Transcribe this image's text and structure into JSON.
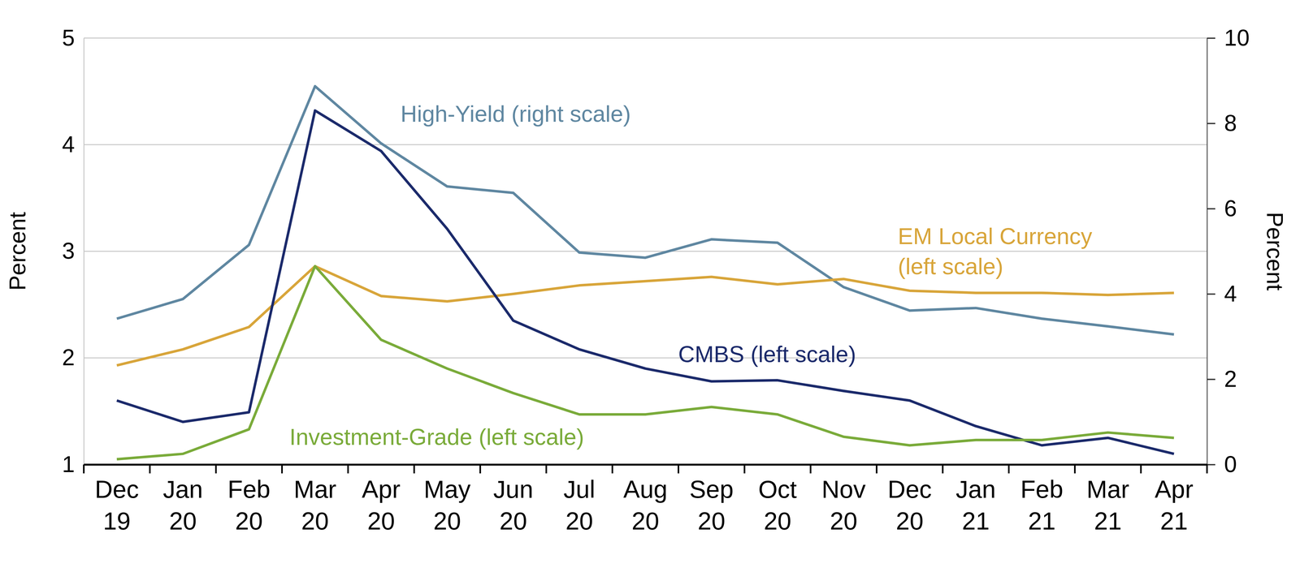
{
  "chart_data": {
    "type": "line",
    "categories": [
      "Dec 19",
      "Jan 20",
      "Feb 20",
      "Mar 20",
      "Apr 20",
      "May 20",
      "Jun 20",
      "Jul 20",
      "Aug 20",
      "Sep 20",
      "Oct 20",
      "Nov 20",
      "Dec 20",
      "Jan 21",
      "Feb 21",
      "Mar 21",
      "Apr 21"
    ],
    "y_label": "Percent",
    "y2_label": "Percent",
    "ylim": [
      1,
      5
    ],
    "yticks": [
      1,
      2,
      3,
      4,
      5
    ],
    "y2lim": [
      0,
      10
    ],
    "y2ticks": [
      0,
      2,
      4,
      6,
      8,
      10
    ],
    "grid": true,
    "series": [
      {
        "name": "High-Yield (right scale)",
        "color": "#5f87a1",
        "axis": "y2",
        "values": [
          3.42,
          3.88,
          5.15,
          8.87,
          7.53,
          6.52,
          6.37,
          4.97,
          4.85,
          5.28,
          5.2,
          4.16,
          3.61,
          3.67,
          3.42,
          3.24,
          3.05
        ]
      },
      {
        "name": "EM Local Currency (left scale)",
        "color": "#d8a53a",
        "axis": "y",
        "values": [
          1.93,
          2.08,
          2.29,
          2.86,
          2.58,
          2.53,
          2.6,
          2.68,
          2.72,
          2.76,
          2.69,
          2.74,
          2.63,
          2.61,
          2.61,
          2.59,
          2.61
        ]
      },
      {
        "name": "CMBS (left scale)",
        "color": "#1b2a6b",
        "axis": "y",
        "values": [
          1.6,
          1.4,
          1.49,
          4.32,
          3.94,
          3.21,
          2.35,
          2.08,
          1.9,
          1.78,
          1.79,
          1.69,
          1.6,
          1.36,
          1.18,
          1.25,
          1.1
        ]
      },
      {
        "name": "Investment-Grade (left scale)",
        "color": "#7aab3a",
        "axis": "y",
        "values": [
          1.05,
          1.1,
          1.33,
          2.86,
          2.17,
          1.9,
          1.67,
          1.47,
          1.47,
          1.54,
          1.47,
          1.26,
          1.18,
          1.23,
          1.23,
          1.3,
          1.25
        ]
      }
    ]
  }
}
